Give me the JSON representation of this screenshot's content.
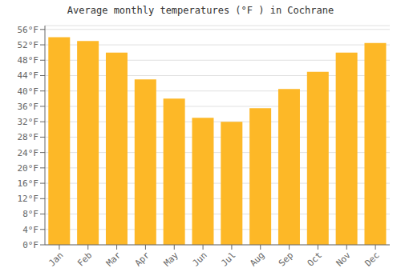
{
  "chart_data": {
    "type": "bar",
    "title": "Average monthly temperatures (°F ) in Cochrane",
    "categories": [
      "Jan",
      "Feb",
      "Mar",
      "Apr",
      "May",
      "Jun",
      "Jul",
      "Aug",
      "Sep",
      "Oct",
      "Nov",
      "Dec"
    ],
    "values": [
      54.0,
      53.0,
      50.0,
      43.0,
      38.0,
      33.0,
      32.0,
      35.5,
      40.5,
      45.0,
      50.0,
      52.5
    ],
    "color": "#FDB827",
    "ylim": [
      0,
      57
    ],
    "yticks": [
      {
        "value": 0,
        "label": "0°F"
      },
      {
        "value": 4,
        "label": "4°F"
      },
      {
        "value": 8,
        "label": "8°F"
      },
      {
        "value": 12,
        "label": "12°F"
      },
      {
        "value": 16,
        "label": "16°F"
      },
      {
        "value": 20,
        "label": "20°F"
      },
      {
        "value": 24,
        "label": "24°F"
      },
      {
        "value": 28,
        "label": "28°F"
      },
      {
        "value": 32,
        "label": "32°F"
      },
      {
        "value": 36,
        "label": "36°F"
      },
      {
        "value": 40,
        "label": "40°F"
      },
      {
        "value": 44,
        "label": "44°F"
      },
      {
        "value": 48,
        "label": "48°F"
      },
      {
        "value": 52,
        "label": "52°F"
      },
      {
        "value": 56,
        "label": "56°F"
      }
    ],
    "grid": true
  }
}
